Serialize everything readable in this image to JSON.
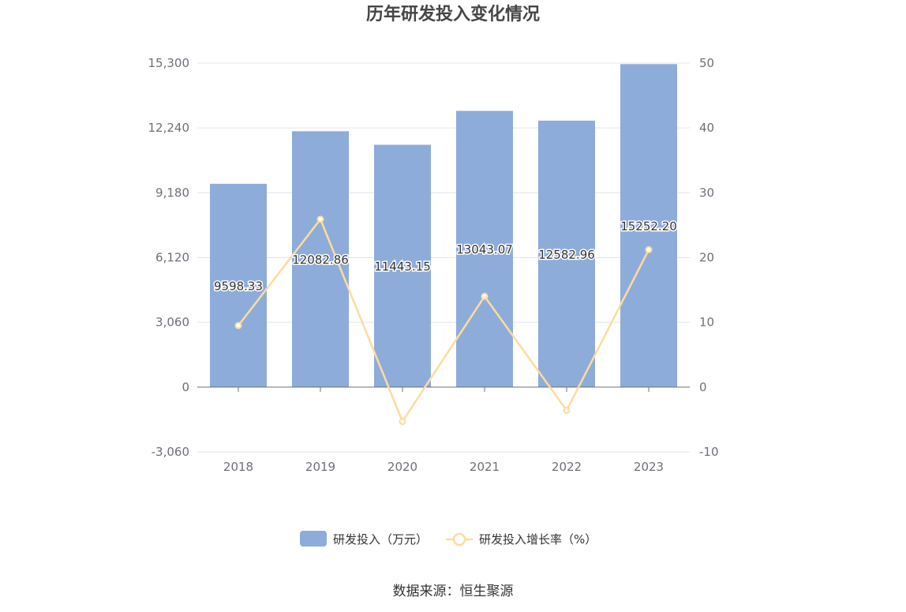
{
  "chart_data": {
    "type": "bar",
    "title": "历年研发投入变化情况",
    "categories": [
      "2018",
      "2019",
      "2020",
      "2021",
      "2022",
      "2023"
    ],
    "series": [
      {
        "name": "研发投入（万元）",
        "type": "bar",
        "axis": "left",
        "values": [
          9598.33,
          12082.86,
          11443.15,
          13043.07,
          12582.96,
          15252.2
        ],
        "labels": [
          "9598.33",
          "12082.86",
          "11443.15",
          "13043.07",
          "12582.96",
          "15252.20"
        ]
      },
      {
        "name": "研发投入增长率（%）",
        "type": "line",
        "axis": "right",
        "values": [
          9.5,
          25.9,
          -5.3,
          14.0,
          -3.6,
          21.2
        ]
      }
    ],
    "left_axis": {
      "ticks": [
        "15,300",
        "12,240",
        "9,180",
        "6,120",
        "3,060",
        "0",
        "-3,060"
      ],
      "range": [
        -3060,
        15300
      ]
    },
    "right_axis": {
      "ticks": [
        "50",
        "40",
        "30",
        "20",
        "10",
        "0",
        "-10"
      ],
      "range": [
        -10,
        50
      ]
    },
    "grid": true,
    "legend_position": "bottom"
  },
  "colors": {
    "bar": "#8eacd9",
    "line": "#fcdc9e",
    "grid": "#e3e6ee",
    "axis": "#6e7079"
  },
  "source": "数据来源：恒生聚源"
}
